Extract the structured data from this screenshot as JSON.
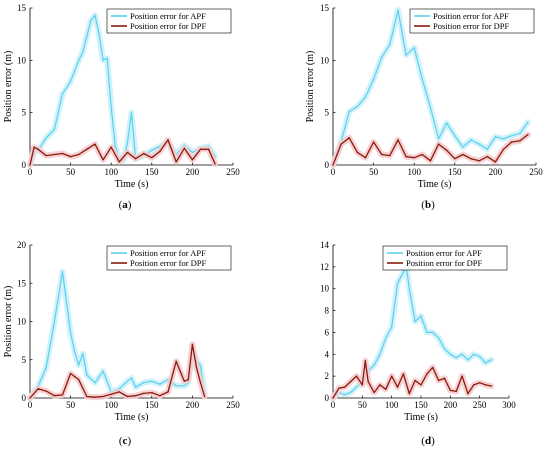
{
  "colors": {
    "apf": "#5ad0ee",
    "apf_band": "#cdf1fb",
    "dpf": "#8b1a0a",
    "dpf_band": "#f5cccf"
  },
  "chart_data": [
    {
      "type": "line",
      "panel": "a",
      "xlabel": "Time (s)",
      "ylabel": "Position error (m)",
      "xlim": [
        0,
        250
      ],
      "ylim": [
        0,
        15
      ],
      "xticks": [
        0,
        50,
        100,
        150,
        200,
        250
      ],
      "yticks": [
        0,
        5,
        10,
        15
      ],
      "legend_position": "top-right",
      "series": [
        {
          "name": "Position error for APF",
          "x": [
            0,
            5,
            10,
            15,
            20,
            30,
            40,
            50,
            60,
            65,
            70,
            75,
            80,
            85,
            90,
            95,
            100,
            105,
            110,
            115,
            120,
            125,
            130,
            140,
            150,
            160,
            170,
            180,
            190,
            200,
            210,
            220,
            228
          ],
          "y": [
            0,
            1.2,
            1.4,
            2.0,
            2.6,
            3.4,
            6.8,
            8.0,
            10.0,
            10.8,
            12.3,
            13.8,
            14.3,
            12.5,
            10.0,
            10.2,
            5.5,
            1.8,
            0.6,
            0.4,
            2.1,
            5.0,
            0.6,
            0.9,
            1.4,
            1.8,
            2.2,
            1.0,
            1.9,
            1.2,
            1.6,
            1.8,
            0.8
          ]
        },
        {
          "name": "Position error for DPF",
          "x": [
            0,
            5,
            10,
            20,
            30,
            40,
            50,
            60,
            70,
            80,
            90,
            100,
            110,
            120,
            130,
            140,
            150,
            160,
            170,
            180,
            190,
            200,
            210,
            220,
            228
          ],
          "y": [
            0,
            1.7,
            1.5,
            0.9,
            1.0,
            1.1,
            0.8,
            1.0,
            1.5,
            2.0,
            0.5,
            1.7,
            0.3,
            1.2,
            0.6,
            1.1,
            0.7,
            1.3,
            2.4,
            0.3,
            1.6,
            0.5,
            1.5,
            1.5,
            0.1
          ]
        }
      ]
    },
    {
      "type": "line",
      "panel": "b",
      "xlabel": "Time (s)",
      "ylabel": "Position error (m)",
      "xlim": [
        0,
        250
      ],
      "ylim": [
        0,
        15
      ],
      "xticks": [
        0,
        50,
        100,
        150,
        200,
        250
      ],
      "yticks": [
        0,
        5,
        10,
        15
      ],
      "legend_position": "top-right",
      "series": [
        {
          "name": "Position error for APF",
          "x": [
            0,
            10,
            20,
            30,
            40,
            50,
            60,
            70,
            80,
            90,
            100,
            110,
            120,
            130,
            140,
            150,
            160,
            170,
            180,
            190,
            200,
            210,
            220,
            230,
            240
          ],
          "y": [
            0,
            2.2,
            5.1,
            5.6,
            6.5,
            8.2,
            10.3,
            11.5,
            14.8,
            10.5,
            11.2,
            8.2,
            5.5,
            2.5,
            4.0,
            2.8,
            1.7,
            2.4,
            2.0,
            1.5,
            2.7,
            2.5,
            2.8,
            3.0,
            4.1
          ]
        },
        {
          "name": "Position error for DPF",
          "x": [
            0,
            5,
            10,
            20,
            30,
            40,
            50,
            60,
            70,
            80,
            90,
            100,
            110,
            120,
            130,
            140,
            150,
            160,
            170,
            180,
            190,
            200,
            210,
            220,
            230,
            240
          ],
          "y": [
            0,
            1.0,
            2.0,
            2.6,
            1.2,
            0.7,
            2.2,
            1.0,
            0.9,
            2.4,
            0.8,
            0.7,
            1.0,
            0.4,
            2.0,
            1.4,
            0.6,
            1.0,
            0.6,
            0.4,
            0.8,
            0.3,
            1.5,
            2.2,
            2.3,
            2.9
          ]
        }
      ]
    },
    {
      "type": "line",
      "panel": "c",
      "xlabel": "Time (s)",
      "ylabel": "Position error (m)",
      "xlim": [
        0,
        250
      ],
      "ylim": [
        0,
        20
      ],
      "xticks": [
        0,
        50,
        100,
        150,
        200,
        250
      ],
      "yticks": [
        0,
        5,
        10,
        15,
        20
      ],
      "legend_position": "top-right",
      "series": [
        {
          "name": "Position error for APF",
          "x": [
            0,
            10,
            20,
            30,
            40,
            50,
            55,
            60,
            65,
            70,
            80,
            90,
            100,
            110,
            120,
            125,
            130,
            140,
            150,
            160,
            170,
            180,
            190,
            195,
            200,
            205,
            210,
            215
          ],
          "y": [
            0,
            1.5,
            4.0,
            10.0,
            16.5,
            8.5,
            6.0,
            4.3,
            5.8,
            3.0,
            2.0,
            3.5,
            0.8,
            1.2,
            2.2,
            2.6,
            1.4,
            2.0,
            2.2,
            1.8,
            2.4,
            1.6,
            1.6,
            2.0,
            6.2,
            5.0,
            4.2,
            0.6
          ]
        },
        {
          "name": "Position error for DPF",
          "x": [
            0,
            10,
            20,
            30,
            40,
            50,
            55,
            60,
            70,
            80,
            90,
            100,
            110,
            120,
            130,
            140,
            150,
            160,
            170,
            180,
            185,
            190,
            195,
            200,
            205,
            210,
            215
          ],
          "y": [
            0,
            1.2,
            0.9,
            0.3,
            0.4,
            3.2,
            2.8,
            2.4,
            0.2,
            0.1,
            0.2,
            0.5,
            0.8,
            0.2,
            0.3,
            0.6,
            0.7,
            0.3,
            0.8,
            4.8,
            3.5,
            2.2,
            2.4,
            7.0,
            4.0,
            2.0,
            0.2
          ]
        }
      ]
    },
    {
      "type": "line",
      "panel": "d",
      "xlabel": "Time (s)",
      "ylabel": "",
      "xlim": [
        0,
        300
      ],
      "ylim": [
        0,
        14
      ],
      "xticks": [
        0,
        50,
        100,
        150,
        200,
        250,
        300
      ],
      "yticks": [
        0,
        2,
        4,
        6,
        8,
        10,
        12,
        14
      ],
      "legend_position": "top-right",
      "series": [
        {
          "name": "Position error for APF",
          "x": [
            0,
            10,
            20,
            30,
            40,
            50,
            60,
            70,
            80,
            90,
            100,
            110,
            120,
            125,
            130,
            140,
            150,
            160,
            170,
            180,
            190,
            200,
            210,
            220,
            230,
            240,
            250,
            260,
            270
          ],
          "y": [
            0,
            0.5,
            0.3,
            0.5,
            1.0,
            1.5,
            2.5,
            3.0,
            4.0,
            5.5,
            6.5,
            10.5,
            11.5,
            12.0,
            10.0,
            7.0,
            7.5,
            6.0,
            6.0,
            5.5,
            4.5,
            4.0,
            3.7,
            4.0,
            3.5,
            4.0,
            3.8,
            3.2,
            3.5
          ]
        },
        {
          "name": "Position error for DPF",
          "x": [
            0,
            10,
            20,
            30,
            40,
            50,
            55,
            60,
            70,
            80,
            90,
            100,
            110,
            120,
            130,
            140,
            150,
            160,
            170,
            180,
            190,
            200,
            210,
            220,
            230,
            240,
            250,
            260,
            270
          ],
          "y": [
            0,
            0.9,
            1.0,
            1.5,
            2.0,
            1.2,
            3.4,
            1.5,
            0.5,
            1.2,
            0.8,
            2.0,
            1.0,
            2.2,
            0.4,
            1.6,
            1.2,
            2.2,
            2.8,
            1.6,
            1.8,
            0.7,
            0.6,
            2.0,
            0.4,
            1.2,
            1.4,
            1.2,
            1.1
          ]
        }
      ]
    }
  ],
  "panel_labels": [
    "(a)",
    "(b)",
    "(c)",
    "(d)"
  ]
}
